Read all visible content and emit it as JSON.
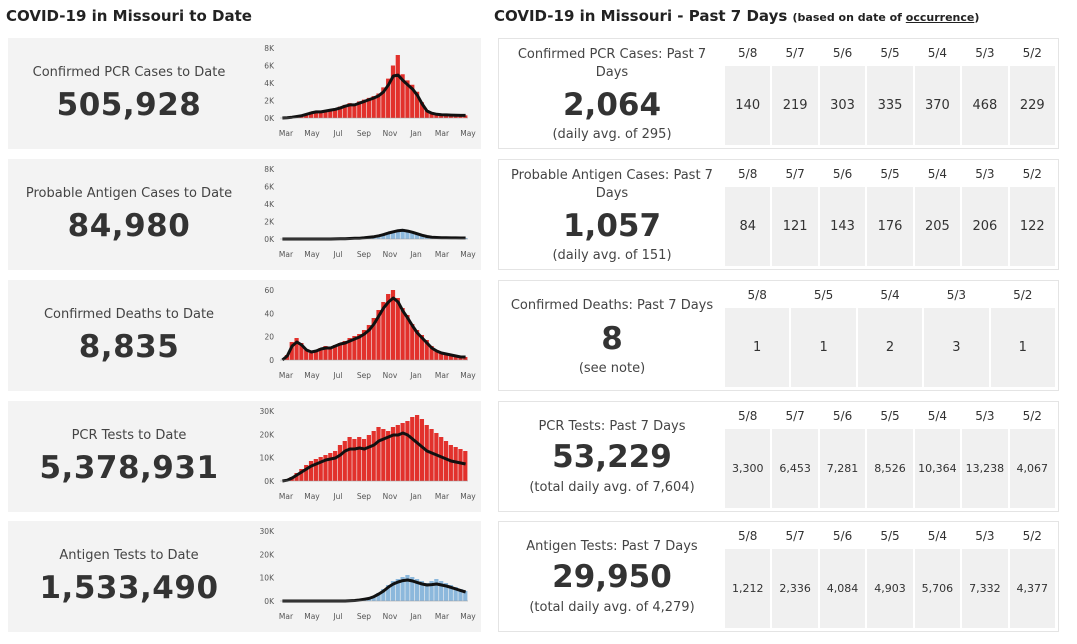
{
  "titles": {
    "left": "COVID-19 in Missouri to Date",
    "right_main": "COVID-19 in Missouri - Past 7 Days",
    "right_note_prefix": "(based on date of ",
    "right_note_link": "occurrence",
    "right_note_suffix": ")"
  },
  "colors": {
    "red": "#e2312c",
    "blue": "#8cb8dc",
    "line": "#111111",
    "card": "#f3f3f3",
    "cell": "#f0f0f0"
  },
  "left_cards": [
    {
      "label": "Confirmed PCR Cases to Date",
      "value": "505,928"
    },
    {
      "label": "Probable Antigen Cases to Date",
      "value": "84,980"
    },
    {
      "label": "Confirmed Deaths to Date",
      "value": "8,835"
    },
    {
      "label": "PCR Tests to Date",
      "value": "5,378,931"
    },
    {
      "label": "Antigen Tests to Date",
      "value": "1,533,490"
    }
  ],
  "right_cards": [
    {
      "label": "Confirmed PCR Cases: Past 7 Days",
      "value": "2,064",
      "sub": "(daily avg. of 295)",
      "dates": [
        "5/8",
        "5/7",
        "5/6",
        "5/5",
        "5/4",
        "5/3",
        "5/2"
      ],
      "values": [
        "140",
        "219",
        "303",
        "335",
        "370",
        "468",
        "229"
      ],
      "small": false
    },
    {
      "label": "Probable Antigen Cases: Past 7 Days",
      "value": "1,057",
      "sub": "(daily avg. of 151)",
      "dates": [
        "5/8",
        "5/7",
        "5/6",
        "5/5",
        "5/4",
        "5/3",
        "5/2"
      ],
      "values": [
        "84",
        "121",
        "143",
        "176",
        "205",
        "206",
        "122"
      ],
      "small": false
    },
    {
      "label": "Confirmed Deaths: Past 7 Days",
      "value": "8",
      "sub": "(see note)",
      "dates": [
        "5/8",
        "5/5",
        "5/4",
        "5/3",
        "5/2"
      ],
      "values": [
        "1",
        "1",
        "2",
        "3",
        "1"
      ],
      "small": false
    },
    {
      "label": "PCR Tests: Past 7 Days",
      "value": "53,229",
      "sub": "(total daily avg. of 7,604)",
      "dates": [
        "5/8",
        "5/7",
        "5/6",
        "5/5",
        "5/4",
        "5/3",
        "5/2"
      ],
      "values": [
        "3,300",
        "6,453",
        "7,281",
        "8,526",
        "10,364",
        "13,238",
        "4,067"
      ],
      "small": true
    },
    {
      "label": "Antigen Tests: Past 7 Days",
      "value": "29,950",
      "sub": "(total daily avg. of 4,279)",
      "dates": [
        "5/8",
        "5/7",
        "5/6",
        "5/5",
        "5/4",
        "5/3",
        "5/2"
      ],
      "values": [
        "1,212",
        "2,336",
        "4,084",
        "4,903",
        "5,706",
        "7,332",
        "4,377"
      ],
      "small": true
    }
  ],
  "chart_data": [
    {
      "type": "area",
      "title": "",
      "color": "red",
      "x": [
        "Mar",
        "May",
        "Jul",
        "Sep",
        "Nov",
        "Jan",
        "Mar",
        "May"
      ],
      "y_ticks": [
        "0K",
        "2K",
        "4K",
        "6K",
        "8K"
      ],
      "ylim": [
        0,
        8000
      ],
      "bars": [
        0,
        50,
        100,
        200,
        300,
        500,
        700,
        800,
        700,
        900,
        1000,
        1100,
        1300,
        1500,
        1700,
        1600,
        1900,
        2100,
        2300,
        2500,
        2800,
        3500,
        4500,
        6000,
        7200,
        5000,
        4300,
        3800,
        3000,
        1800,
        900,
        600,
        450,
        400,
        380,
        350,
        320,
        300,
        300
      ],
      "avg": [
        0,
        40,
        90,
        170,
        260,
        420,
        580,
        700,
        700,
        800,
        900,
        1000,
        1150,
        1350,
        1500,
        1500,
        1700,
        1900,
        2100,
        2300,
        2550,
        3000,
        3800,
        4800,
        4900,
        4300,
        3800,
        3300,
        2600,
        1600,
        800,
        550,
        420,
        380,
        350,
        330,
        310,
        300,
        300
      ]
    },
    {
      "type": "area",
      "title": "",
      "color": "blue",
      "x": [
        "Mar",
        "May",
        "Jul",
        "Sep",
        "Nov",
        "Jan",
        "Mar",
        "May"
      ],
      "y_ticks": [
        "0K",
        "2K",
        "4K",
        "6K",
        "8K"
      ],
      "ylim": [
        0,
        8000
      ],
      "bars": [
        0,
        0,
        0,
        0,
        0,
        0,
        0,
        0,
        0,
        0,
        0,
        10,
        20,
        40,
        60,
        80,
        100,
        150,
        200,
        280,
        400,
        550,
        750,
        900,
        1050,
        1150,
        1000,
        850,
        650,
        450,
        300,
        220,
        180,
        160,
        150,
        140,
        130,
        120,
        120
      ],
      "avg": [
        0,
        0,
        0,
        0,
        0,
        0,
        0,
        0,
        0,
        0,
        0,
        8,
        18,
        35,
        55,
        75,
        95,
        140,
        190,
        260,
        370,
        500,
        680,
        820,
        950,
        1000,
        900,
        770,
        600,
        420,
        280,
        210,
        170,
        150,
        140,
        130,
        125,
        120,
        120
      ]
    },
    {
      "type": "area",
      "title": "",
      "color": "red",
      "x": [
        "Mar",
        "May",
        "Jul",
        "Sep",
        "Nov",
        "Jan",
        "Mar",
        "May"
      ],
      "y_ticks": [
        "0",
        "20",
        "40",
        "60"
      ],
      "ylim": [
        0,
        70
      ],
      "bars": [
        0,
        5,
        18,
        22,
        17,
        10,
        7,
        9,
        12,
        14,
        13,
        15,
        17,
        19,
        22,
        24,
        26,
        30,
        35,
        42,
        50,
        58,
        66,
        70,
        62,
        52,
        45,
        36,
        30,
        25,
        20,
        14,
        10,
        8,
        7,
        6,
        5,
        4,
        3
      ],
      "avg": [
        0,
        4,
        14,
        18,
        15,
        10,
        8,
        9,
        11,
        12,
        12,
        14,
        16,
        17,
        19,
        21,
        23,
        26,
        30,
        36,
        44,
        52,
        58,
        62,
        58,
        49,
        42,
        34,
        27,
        22,
        17,
        12,
        9,
        7,
        6,
        5,
        4,
        3,
        3
      ]
    },
    {
      "type": "area",
      "title": "",
      "color": "red",
      "x": [
        "Mar",
        "May",
        "Jul",
        "Sep",
        "Nov",
        "Jan",
        "Mar",
        "May"
      ],
      "y_ticks": [
        "0K",
        "10K",
        "20K",
        "30K"
      ],
      "ylim": [
        0,
        35000
      ],
      "bars": [
        0,
        500,
        2000,
        4000,
        6000,
        8000,
        10000,
        11000,
        12000,
        13000,
        14000,
        15000,
        18000,
        20000,
        22000,
        21000,
        22000,
        21000,
        23000,
        25000,
        27000,
        26000,
        25000,
        27000,
        28000,
        29000,
        30000,
        32000,
        33000,
        31000,
        28000,
        26000,
        24000,
        22000,
        20000,
        18000,
        17000,
        16000,
        15000
      ],
      "avg": [
        0,
        400,
        1500,
        3000,
        4500,
        6000,
        7500,
        8500,
        9500,
        10500,
        11000,
        11500,
        13000,
        15000,
        16000,
        16000,
        16500,
        16000,
        17000,
        18000,
        20000,
        21000,
        22000,
        23000,
        23000,
        24000,
        23000,
        21000,
        19000,
        17000,
        15000,
        14000,
        13000,
        12000,
        11000,
        10000,
        9500,
        9000,
        8500
      ]
    },
    {
      "type": "area",
      "title": "",
      "color": "blue",
      "x": [
        "Mar",
        "May",
        "Jul",
        "Sep",
        "Nov",
        "Jan",
        "Mar",
        "May"
      ],
      "y_ticks": [
        "0K",
        "10K",
        "20K",
        "30K"
      ],
      "ylim": [
        0,
        35000
      ],
      "bars": [
        0,
        0,
        0,
        0,
        0,
        0,
        0,
        0,
        0,
        0,
        0,
        0,
        0,
        0,
        100,
        300,
        600,
        1000,
        1500,
        2500,
        4000,
        6000,
        8000,
        10000,
        11000,
        12000,
        13000,
        12000,
        11000,
        10000,
        9000,
        10000,
        11000,
        10000,
        9000,
        8000,
        7000,
        6000,
        5000
      ],
      "avg": [
        0,
        0,
        0,
        0,
        0,
        0,
        0,
        0,
        0,
        0,
        0,
        0,
        0,
        0,
        80,
        250,
        500,
        900,
        1300,
        2200,
        3500,
        5000,
        7000,
        8500,
        9500,
        10200,
        10500,
        10000,
        9200,
        8500,
        8000,
        8200,
        8500,
        8000,
        7500,
        6800,
        6000,
        5200,
        4500
      ]
    }
  ]
}
